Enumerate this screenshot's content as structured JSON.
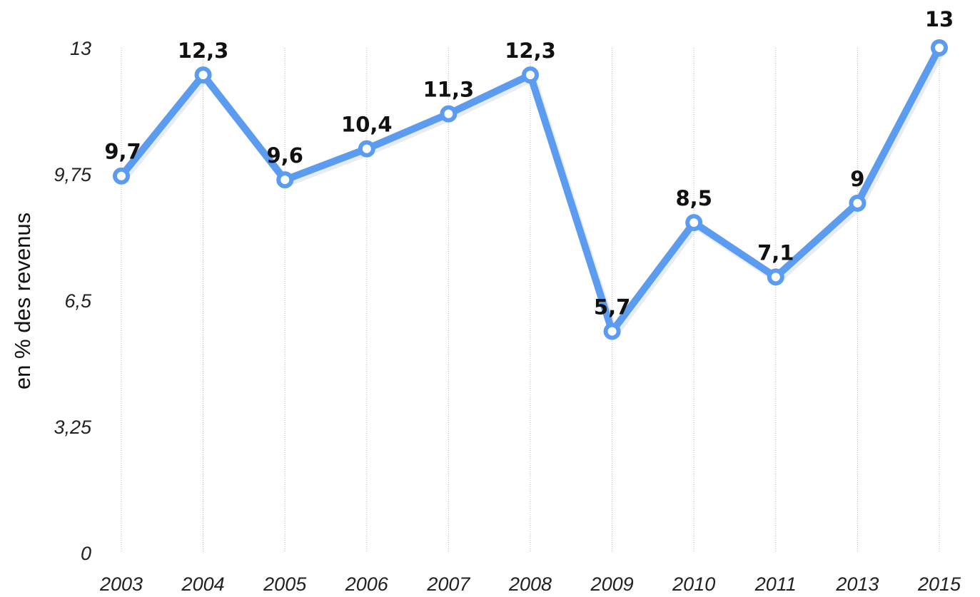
{
  "chart_data": {
    "type": "line",
    "title": "",
    "xlabel": "",
    "ylabel": "en % des revenus",
    "categories": [
      "2003",
      "2004",
      "2005",
      "2006",
      "2007",
      "2008",
      "2009",
      "2010",
      "2011",
      "2013",
      "2015"
    ],
    "series": [
      {
        "values": [
          9.7,
          12.3,
          9.6,
          10.4,
          11.3,
          12.3,
          5.7,
          8.5,
          7.1,
          9,
          13
        ],
        "data_labels": [
          "9,7",
          "12,3",
          "9,6",
          "10,4",
          "11,3",
          "12,3",
          "5,7",
          "8,5",
          "7,1",
          "9",
          "13"
        ],
        "color": "#5b9bf0"
      }
    ],
    "ylim": [
      0,
      13
    ],
    "yticks": [
      0,
      3.25,
      6.5,
      9.75,
      13
    ],
    "ytick_labels": [
      "0",
      "3,25",
      "6,5",
      "9,75",
      "13"
    ],
    "grid": "vertical-dotted",
    "legend": "none"
  }
}
